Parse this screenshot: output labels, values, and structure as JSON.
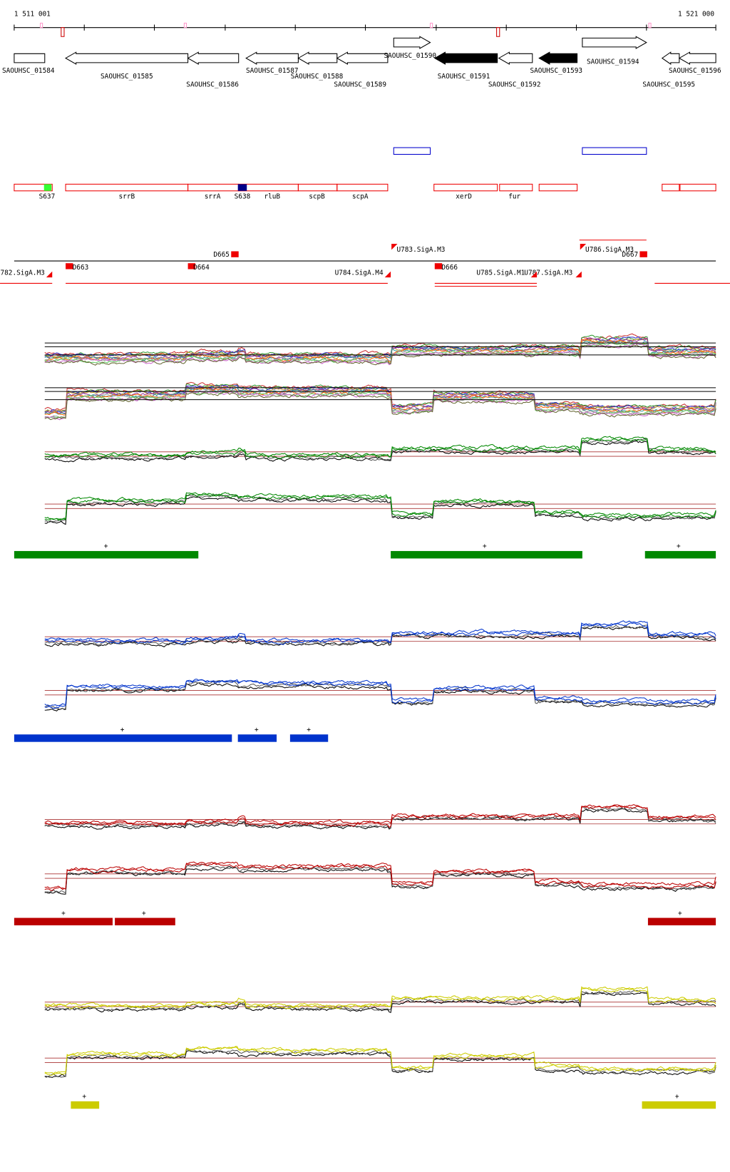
{
  "header": {
    "start": "1 511 001",
    "end": "1 521 000"
  },
  "genes": [
    {
      "label": "SAOUHSC_01584"
    },
    {
      "label": "SAOUHSC_01585"
    },
    {
      "label": "SAOUHSC_01586"
    },
    {
      "label": "SAOUHSC_01587"
    },
    {
      "label": "SAOUHSC_01588"
    },
    {
      "label": "SAOUHSC_01589"
    },
    {
      "label": "SAOUHSC_01590"
    },
    {
      "label": "SAOUHSC_01591"
    },
    {
      "label": "SAOUHSC_01592"
    },
    {
      "label": "SAOUHSC_01593"
    },
    {
      "label": "SAOUHSC_01594"
    },
    {
      "label": "SAOUHSC_01595"
    },
    {
      "label": "SAOUHSC_01596"
    }
  ],
  "features": [
    {
      "label": "S637"
    },
    {
      "label": "srrB"
    },
    {
      "label": "srrA"
    },
    {
      "label": "S638"
    },
    {
      "label": "rluB"
    },
    {
      "label": "scpB"
    },
    {
      "label": "scpA"
    },
    {
      "label": "xerD"
    },
    {
      "label": "fur"
    }
  ],
  "promoters": [
    {
      "label": "D665"
    },
    {
      "label": "D663"
    },
    {
      "label": "D664"
    },
    {
      "label": "D666"
    },
    {
      "label": "D667"
    },
    {
      "label": "782.SigA.M3"
    },
    {
      "label": "U783.SigA.M3"
    },
    {
      "label": "U784.SigA.M4"
    },
    {
      "label": "U785.SigA.M1"
    },
    {
      "label": "U787.SigA.M3"
    },
    {
      "label": "U786.SigA.M3"
    }
  ],
  "panels": [
    {
      "marks": [
        "+",
        "+",
        "+"
      ]
    },
    {
      "marks": [
        "+",
        "+",
        "+"
      ]
    },
    {
      "marks": [
        "+",
        "+",
        "+"
      ]
    },
    {
      "marks": [
        "+",
        "+"
      ]
    }
  ]
}
